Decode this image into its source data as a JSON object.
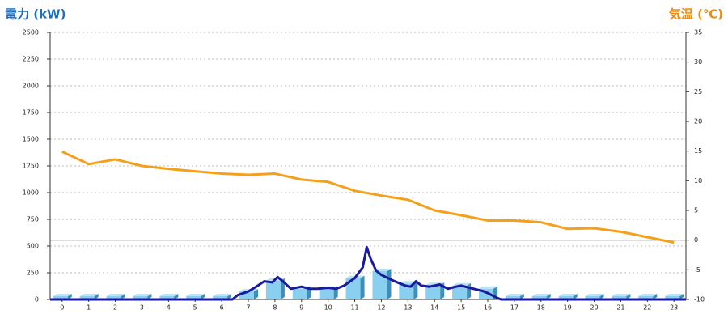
{
  "chart_data": {
    "type": "combo",
    "ylabel": "電力 (kW)",
    "y2label": "気温 (℃)",
    "xlim": [
      -0.45,
      23.45
    ],
    "xticks": [
      0,
      1,
      2,
      3,
      4,
      5,
      6,
      7,
      8,
      9,
      10,
      11,
      12,
      13,
      14,
      15,
      16,
      17,
      18,
      19,
      20,
      21,
      22,
      23
    ],
    "ylim": [
      0,
      2500
    ],
    "yticks": [
      0,
      250,
      500,
      750,
      1000,
      1250,
      1500,
      1750,
      2000,
      2250,
      2500
    ],
    "y2lim": [
      -10,
      35
    ],
    "y2ticks": [
      -10,
      -5,
      0,
      5,
      10,
      15,
      20,
      25,
      30,
      35
    ],
    "grid": true,
    "y2_refline": 0,
    "series": [
      {
        "type": "bar",
        "color": "#89cff0",
        "x": [
          0,
          1,
          2,
          3,
          4,
          5,
          6,
          7,
          8,
          9,
          10,
          11,
          12,
          13,
          14,
          15,
          16,
          17,
          18,
          19,
          20,
          21,
          22,
          23
        ],
        "values": [
          0,
          0,
          0,
          0,
          0,
          0,
          0,
          75,
          175,
          100,
          100,
          200,
          265,
          150,
          135,
          130,
          100,
          0,
          0,
          0,
          0,
          0,
          0,
          0
        ]
      },
      {
        "type": "line",
        "color": "#1a1a9c",
        "x": [
          -0.45,
          6.4,
          6.6,
          7,
          7.3,
          7.6,
          7.9,
          8.1,
          8.3,
          8.6,
          9,
          9.3,
          9.6,
          10,
          10.3,
          10.6,
          11,
          11.3,
          11.45,
          11.6,
          11.8,
          12,
          12.5,
          12.9,
          13.1,
          13.3,
          13.5,
          13.8,
          14.2,
          14.5,
          14.8,
          15,
          15.3,
          15.8,
          16,
          16.3,
          16.5,
          23.45
        ],
        "values": [
          0,
          0,
          40,
          75,
          120,
          170,
          160,
          210,
          170,
          100,
          120,
          100,
          100,
          110,
          100,
          130,
          200,
          300,
          490,
          380,
          270,
          230,
          170,
          130,
          120,
          170,
          130,
          120,
          140,
          100,
          120,
          130,
          110,
          80,
          60,
          20,
          0,
          0
        ]
      },
      {
        "type": "line",
        "axis": "y2",
        "color": "#f5a01a",
        "x": [
          0,
          1,
          2,
          3,
          4,
          5,
          6,
          7,
          8,
          9,
          10,
          11,
          12,
          13,
          14,
          15,
          16,
          17,
          18,
          19,
          20,
          21,
          22,
          23
        ],
        "values": [
          14.9,
          12.8,
          13.6,
          12.5,
          12.0,
          11.6,
          11.2,
          11.0,
          11.2,
          10.2,
          9.8,
          8.3,
          7.5,
          6.8,
          5.0,
          4.2,
          3.3,
          3.3,
          3.0,
          1.9,
          2.0,
          1.4,
          0.5,
          -0.4
        ]
      }
    ]
  }
}
